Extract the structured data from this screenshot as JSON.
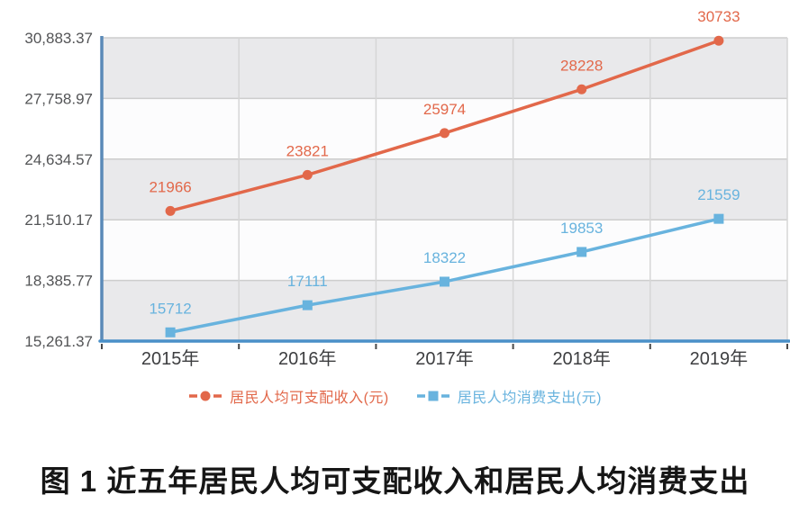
{
  "chart_data": {
    "type": "line",
    "categories": [
      "2015年",
      "2016年",
      "2017年",
      "2018年",
      "2019年"
    ],
    "series": [
      {
        "name": "居民人均可支配收入(元)",
        "color": "#e2684a",
        "marker": "circle",
        "values": [
          21966,
          23821,
          25974,
          28228,
          30733
        ]
      },
      {
        "name": "居民人均消费支出(元)",
        "color": "#68b3de",
        "marker": "square",
        "values": [
          15712,
          17111,
          18322,
          19853,
          21559
        ]
      }
    ],
    "ylim": [
      15261.37,
      30883.37
    ],
    "yticks": [
      {
        "value": 15261.37,
        "label": "15,261.37"
      },
      {
        "value": 18385.77,
        "label": "18,385.77"
      },
      {
        "value": 21510.17,
        "label": "21,510.17"
      },
      {
        "value": 24634.57,
        "label": "24,634.57"
      },
      {
        "value": 27758.97,
        "label": "27,758.97"
      },
      {
        "value": 30883.37,
        "label": "30,883.37"
      }
    ],
    "grid": true,
    "legend_position": "bottom",
    "title": "",
    "xlabel": "",
    "ylabel": ""
  },
  "caption": "图 1 近五年居民人均可支配收入和居民人均消费支出",
  "colors": {
    "band_gray": "#e9e9eb",
    "band_white": "#fcfcfd",
    "grid_horizontal": "#cdcdcd",
    "grid_vertical": "#d6d6d6",
    "axis_left": "#5a8ab8",
    "axis_bottom": "#4a90c8",
    "axis_tick": "#4a4a4a",
    "ytick_label": "#535456",
    "xtick_label": "#3d3e40"
  }
}
